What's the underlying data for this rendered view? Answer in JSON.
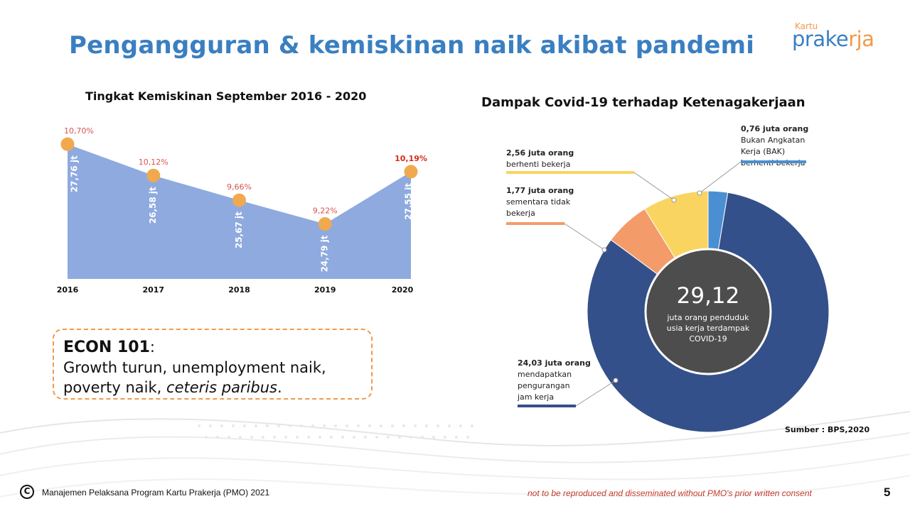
{
  "slide": {
    "title": "Pengangguran & kemiskinan naik akibat pandemi",
    "page_number": "5"
  },
  "logo": {
    "top_text": "Kartu",
    "main_text_a": "prake",
    "main_text_b": "rja"
  },
  "poverty_chart": {
    "title": "Tingkat Kemiskinan September 2016 - 2020"
  },
  "covid_chart": {
    "title": "Dampak Covid-19 terhadap Ketenagakerjaan",
    "center_value": "29,12",
    "center_lines": [
      "juta orang penduduk",
      "usia kerja terdampak",
      "COVID-19"
    ]
  },
  "econ_box": {
    "head": "ECON 101",
    "colon": ":",
    "line1": "Growth turun, unemployment naik,",
    "line2_plain": "poverty naik, ",
    "line2_italic": "ceteris paribus",
    "line2_end": "."
  },
  "source": "Sumber : BPS,2020",
  "footer": {
    "copyright_symbol": "C",
    "left": "Manajemen Pelaksana Program Kartu Prakerja (PMO) 2021",
    "right": "not to be reproduced and disseminated without PMO's prior written consent"
  },
  "chart_data": [
    {
      "type": "area",
      "title": "Tingkat Kemiskinan September 2016 - 2020",
      "categories": [
        "2016",
        "2017",
        "2018",
        "2019",
        "2020"
      ],
      "series": [
        {
          "values": [
            10.7,
            10.12,
            9.66,
            9.22,
            10.19
          ],
          "labels": [
            "10,70%",
            "10,12%",
            "9,66%",
            "9,22%",
            "10,19%"
          ]
        }
      ],
      "people_labels": [
        "27,76 jt",
        "26,58 jt",
        "25,67 jt",
        "24,79 jt",
        "27,55 jt"
      ],
      "ylim": [
        8.2,
        10.9
      ],
      "colors": {
        "area": "#8eaadf",
        "marker": "#f0a94e",
        "label": "#d9534f",
        "label_last": "#d62c1a",
        "people_label": "#ffffff"
      }
    },
    {
      "type": "pie",
      "title": "Dampak Covid-19 terhadap Ketenagakerjaan",
      "total": 29.12,
      "slices": [
        {
          "value": 0.76,
          "label_lines": [
            "0,76 juta orang",
            "Bukan Angkatan",
            "Kerja (BAK)",
            "berhenti bekerja"
          ],
          "color": "#4a8fd1"
        },
        {
          "value": 24.03,
          "label_lines": [
            "24,03 juta orang",
            "mendapatkan",
            "pengurangan",
            "jam kerja"
          ],
          "color": "#34508a"
        },
        {
          "value": 1.77,
          "label_lines": [
            "1,77 juta orang",
            "sementara tidak",
            "bekerja"
          ],
          "color": "#f49b6a"
        },
        {
          "value": 2.56,
          "label_lines": [
            "2,56 juta orang",
            "berhenti bekerja"
          ],
          "color": "#f9d460"
        }
      ],
      "center_color": "#4d4d4d"
    }
  ]
}
